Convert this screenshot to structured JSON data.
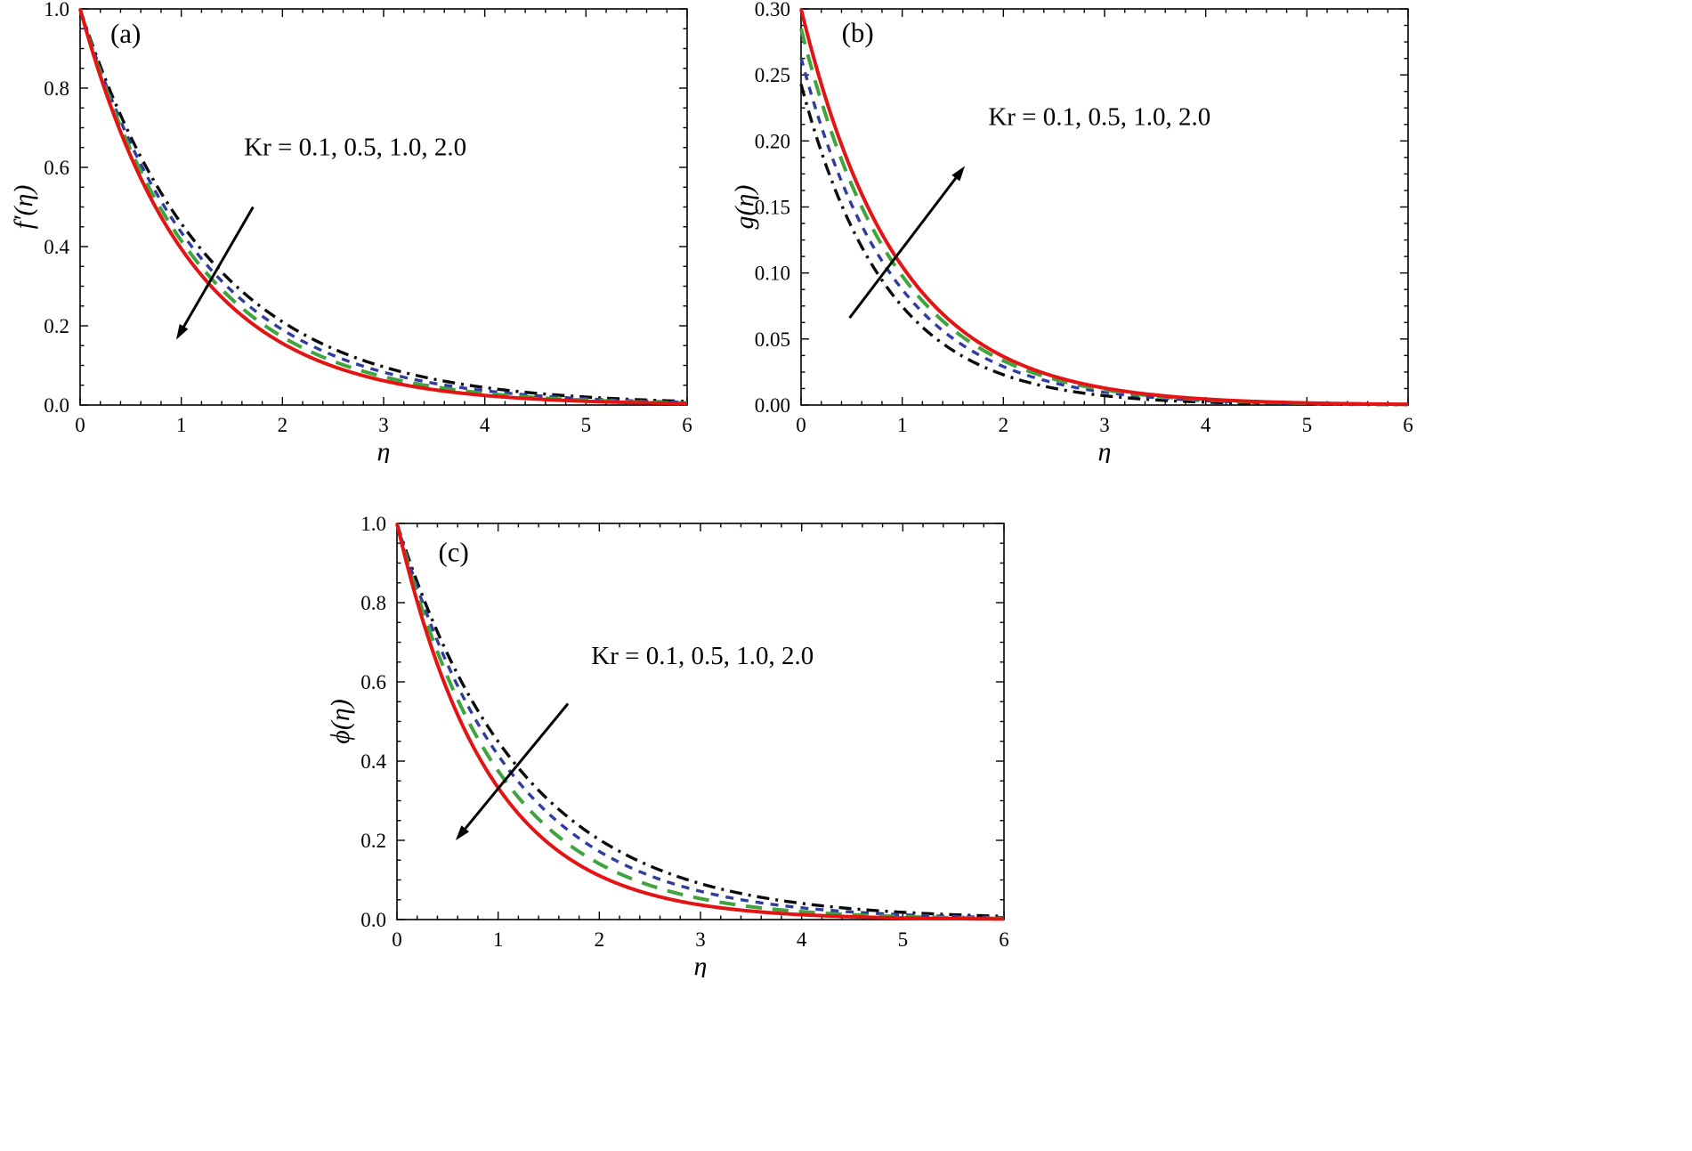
{
  "figure": {
    "background": "#ffffff",
    "frame_color": "#000000",
    "text_color": "#000000",
    "arrow_color": "#000000"
  },
  "chart_data": [
    {
      "id": "a",
      "type": "line",
      "panel_label": "(a)",
      "panel_label_pos": [
        0.45,
        0.915
      ],
      "xlabel": "η",
      "ylabel": "f′(η)",
      "xlim": [
        0,
        6
      ],
      "ylim": [
        0,
        1.0
      ],
      "grid": false,
      "xticks": {
        "values": [
          0,
          1,
          2,
          3,
          4,
          5,
          6
        ],
        "labels": [
          "0",
          "1",
          "2",
          "3",
          "4",
          "5",
          "6"
        ],
        "minor_divisions": 5
      },
      "yticks": {
        "values": [
          0,
          0.2,
          0.4,
          0.6,
          0.8,
          1.0
        ],
        "labels": [
          "0.0",
          "0.2",
          "0.4",
          "0.6",
          "0.8",
          "1.0"
        ],
        "minor_divisions": 4
      },
      "annotation": {
        "text": "Kr = 0.1, 0.5, 1.0, 2.0",
        "pos": [
          2.72,
          0.63
        ],
        "arrow_from": [
          1.71,
          0.5
        ],
        "arrow_to": [
          0.95,
          0.165
        ],
        "arrow_direction": "down-left"
      },
      "series": [
        {
          "name": "Kr = 0.1",
          "color": "#0a0a0a",
          "style": "dashdot",
          "width": 3.4,
          "model": {
            "y0": 1,
            "k": 0.78
          },
          "samples_x": [
            0,
            1,
            2,
            3,
            4,
            5,
            6
          ],
          "samples_y": [
            1.0,
            0.458,
            0.21,
            0.096,
            0.044,
            0.02,
            0.009
          ]
        },
        {
          "name": "Kr = 0.5",
          "color": "#2e3d9e",
          "style": "dash",
          "width": 3.4,
          "model": {
            "y0": 1,
            "k": 0.83
          },
          "samples_x": [
            0,
            1,
            2,
            3,
            4,
            5,
            6
          ],
          "samples_y": [
            1.0,
            0.436,
            0.19,
            0.083,
            0.036,
            0.016,
            0.007
          ]
        },
        {
          "name": "Kr = 1.0",
          "color": "#3fa33f",
          "style": "longdash",
          "width": 4.0,
          "model": {
            "y0": 1,
            "k": 0.88
          },
          "samples_x": [
            0,
            1,
            2,
            3,
            4,
            5,
            6
          ],
          "samples_y": [
            1.0,
            0.415,
            0.172,
            0.071,
            0.03,
            0.012,
            0.005
          ]
        },
        {
          "name": "Kr = 2.0",
          "color": "#e51414",
          "style": "solid",
          "width": 4.0,
          "model": {
            "y0": 1,
            "k": 0.93
          },
          "samples_x": [
            0,
            1,
            2,
            3,
            4,
            5,
            6
          ],
          "samples_y": [
            1.0,
            0.395,
            0.156,
            0.061,
            0.024,
            0.01,
            0.004
          ]
        }
      ]
    },
    {
      "id": "b",
      "type": "line",
      "panel_label": "(b)",
      "panel_label_pos": [
        0.56,
        0.275
      ],
      "xlabel": "η",
      "ylabel": "g(η)",
      "xlim": [
        0,
        6
      ],
      "ylim": [
        0,
        0.3
      ],
      "grid": false,
      "xticks": {
        "values": [
          0,
          1,
          2,
          3,
          4,
          5,
          6
        ],
        "labels": [
          "0",
          "1",
          "2",
          "3",
          "4",
          "5",
          "6"
        ],
        "minor_divisions": 5
      },
      "yticks": {
        "values": [
          0,
          0.05,
          0.1,
          0.15,
          0.2,
          0.25,
          0.3
        ],
        "labels": [
          "0.00",
          "0.05",
          "0.10",
          "0.15",
          "0.20",
          "0.25",
          "0.30"
        ],
        "minor_divisions": 4
      },
      "annotation": {
        "text": "Kr = 0.1, 0.5, 1.0, 2.0",
        "pos": [
          2.95,
          0.212
        ],
        "arrow_from": [
          0.48,
          0.066
        ],
        "arrow_to": [
          1.62,
          0.181
        ],
        "arrow_direction": "up-right"
      },
      "series": [
        {
          "name": "Kr = 0.1",
          "color": "#0a0a0a",
          "style": "dashdot",
          "width": 3.4,
          "model": {
            "y0": 0.243,
            "k": 1.18
          },
          "samples_x": [
            0,
            1,
            2,
            3,
            4,
            5,
            6
          ],
          "samples_y": [
            0.243,
            0.075,
            0.023,
            0.007,
            0.0022,
            0.0007,
            0.0002
          ]
        },
        {
          "name": "Kr = 0.5",
          "color": "#2e3d9e",
          "style": "dash",
          "width": 3.4,
          "model": {
            "y0": 0.263,
            "k": 1.1
          },
          "samples_x": [
            0,
            1,
            2,
            3,
            4,
            5,
            6
          ],
          "samples_y": [
            0.263,
            0.088,
            0.029,
            0.0097,
            0.0032,
            0.0011,
            0.0004
          ]
        },
        {
          "name": "Kr = 1.0",
          "color": "#3fa33f",
          "style": "longdash",
          "width": 4.0,
          "model": {
            "y0": 0.285,
            "k": 1.07
          },
          "samples_x": [
            0,
            1,
            2,
            3,
            4,
            5,
            6
          ],
          "samples_y": [
            0.285,
            0.098,
            0.034,
            0.0115,
            0.0039,
            0.0013,
            0.0005
          ]
        },
        {
          "name": "Kr = 2.0",
          "color": "#e51414",
          "style": "solid",
          "width": 4.0,
          "model": {
            "y0": 0.3,
            "k": 1.05
          },
          "samples_x": [
            0,
            1,
            2,
            3,
            4,
            5,
            6
          ],
          "samples_y": [
            0.3,
            0.105,
            0.037,
            0.0129,
            0.0045,
            0.0016,
            0.0006
          ]
        }
      ]
    },
    {
      "id": "c",
      "type": "line",
      "panel_label": "(c)",
      "panel_label_pos": [
        0.56,
        0.905
      ],
      "xlabel": "η",
      "ylabel": "ϕ(η)",
      "xlim": [
        0,
        6
      ],
      "ylim": [
        0,
        1.0
      ],
      "grid": false,
      "xticks": {
        "values": [
          0,
          1,
          2,
          3,
          4,
          5,
          6
        ],
        "labels": [
          "0",
          "1",
          "2",
          "3",
          "4",
          "5",
          "6"
        ],
        "minor_divisions": 5
      },
      "yticks": {
        "values": [
          0,
          0.2,
          0.4,
          0.6,
          0.8,
          1.0
        ],
        "labels": [
          "0.0",
          "0.2",
          "0.4",
          "0.6",
          "0.8",
          "1.0"
        ],
        "minor_divisions": 4
      },
      "annotation": {
        "text": "Kr = 0.1, 0.5, 1.0, 2.0",
        "pos": [
          3.02,
          0.645
        ],
        "arrow_from": [
          1.69,
          0.545
        ],
        "arrow_to": [
          0.58,
          0.2
        ],
        "arrow_direction": "down-left"
      },
      "series": [
        {
          "name": "Kr = 0.1",
          "color": "#0a0a0a",
          "style": "dashdot",
          "width": 3.4,
          "model": {
            "y0": 1,
            "k": 0.8
          },
          "samples_x": [
            0,
            1,
            2,
            3,
            4,
            5,
            6
          ],
          "samples_y": [
            1.0,
            0.449,
            0.202,
            0.091,
            0.041,
            0.018,
            0.008
          ]
        },
        {
          "name": "Kr = 0.5",
          "color": "#2e3d9e",
          "style": "dash",
          "width": 3.4,
          "model": {
            "y0": 1,
            "k": 0.88
          },
          "samples_x": [
            0,
            1,
            2,
            3,
            4,
            5,
            6
          ],
          "samples_y": [
            1.0,
            0.415,
            0.172,
            0.071,
            0.03,
            0.012,
            0.005
          ]
        },
        {
          "name": "Kr = 1.0",
          "color": "#3fa33f",
          "style": "longdash",
          "width": 4.0,
          "model": {
            "y0": 1,
            "k": 0.98
          },
          "samples_x": [
            0,
            1,
            2,
            3,
            4,
            5,
            6
          ],
          "samples_y": [
            1.0,
            0.375,
            0.141,
            0.053,
            0.02,
            0.0074,
            0.0028
          ]
        },
        {
          "name": "Kr = 2.0",
          "color": "#e51414",
          "style": "solid",
          "width": 4.0,
          "model": {
            "y0": 1,
            "k": 1.1
          },
          "samples_x": [
            0,
            1,
            2,
            3,
            4,
            5,
            6
          ],
          "samples_y": [
            1.0,
            0.333,
            0.111,
            0.037,
            0.0123,
            0.0041,
            0.0014
          ]
        }
      ]
    }
  ]
}
